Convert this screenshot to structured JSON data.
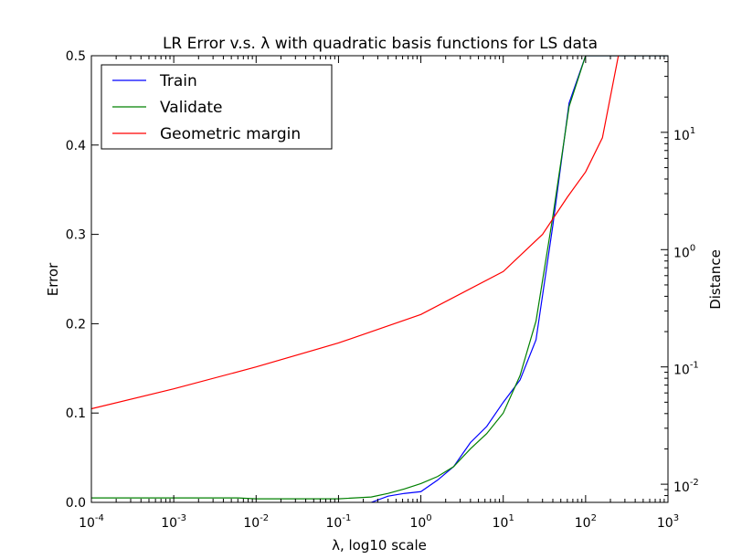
{
  "chart_data": {
    "type": "line",
    "title": "LR Error v.s. λ with quadratic basis functions for LS data",
    "xlabel": "λ, log10 scale",
    "ylabel": "Error",
    "y2label": "Distance",
    "xscale": "log",
    "xlim": [
      0.0001,
      1000
    ],
    "ylim": [
      0,
      0.5
    ],
    "y2scale": "log",
    "y2lim": [
      0.007,
      45
    ],
    "x_ticks": [
      {
        "value": 0.0001,
        "base": "10",
        "exp": "-4"
      },
      {
        "value": 0.001,
        "base": "10",
        "exp": "-3"
      },
      {
        "value": 0.01,
        "base": "10",
        "exp": "-2"
      },
      {
        "value": 0.1,
        "base": "10",
        "exp": "-1"
      },
      {
        "value": 1,
        "base": "10",
        "exp": "0"
      },
      {
        "value": 10,
        "base": "10",
        "exp": "1"
      },
      {
        "value": 100,
        "base": "10",
        "exp": "2"
      },
      {
        "value": 1000,
        "base": "10",
        "exp": "3"
      }
    ],
    "y_ticks": [
      "0.0",
      "0.1",
      "0.2",
      "0.3",
      "0.4",
      "0.5"
    ],
    "y2_ticks": [
      {
        "value": 0.01,
        "base": "10",
        "exp": "-2"
      },
      {
        "value": 0.1,
        "base": "10",
        "exp": "-1"
      },
      {
        "value": 1,
        "base": "10",
        "exp": "0"
      },
      {
        "value": 10,
        "base": "10",
        "exp": "1"
      }
    ],
    "grid": false,
    "legend_position": "top-left",
    "series": [
      {
        "name": "Train",
        "color": "#0000ff",
        "axis": "left",
        "x": [
          0.25,
          0.4,
          0.63,
          1.0,
          1.6,
          2.5,
          4.0,
          6.3,
          10,
          16,
          25,
          40,
          63,
          100,
          160,
          250,
          1000
        ],
        "y": [
          0.0,
          0.007,
          0.01,
          0.012,
          0.025,
          0.04,
          0.067,
          0.085,
          0.112,
          0.137,
          0.182,
          0.31,
          0.447,
          0.5,
          0.5,
          0.5,
          0.5
        ]
      },
      {
        "name": "Validate",
        "color": "#008000",
        "axis": "left",
        "x": [
          0.0001,
          0.001,
          0.006,
          0.01,
          0.1,
          0.25,
          0.4,
          0.63,
          1.0,
          1.6,
          2.5,
          4.0,
          6.3,
          10,
          16,
          25,
          40,
          63,
          100,
          160,
          250,
          1000
        ],
        "y": [
          0.005,
          0.005,
          0.005,
          0.004,
          0.004,
          0.006,
          0.01,
          0.015,
          0.021,
          0.029,
          0.04,
          0.06,
          0.077,
          0.1,
          0.142,
          0.203,
          0.32,
          0.443,
          0.5,
          0.5,
          0.5,
          0.5
        ]
      },
      {
        "name": "Geometric margin",
        "color": "#ff0000",
        "axis": "right",
        "x": [
          0.0001,
          0.001,
          0.01,
          0.1,
          1,
          10,
          30,
          60,
          100,
          160,
          250
        ],
        "y": [
          0.044,
          0.065,
          0.1,
          0.16,
          0.28,
          0.65,
          1.35,
          2.8,
          4.6,
          9.0,
          45
        ]
      }
    ]
  }
}
